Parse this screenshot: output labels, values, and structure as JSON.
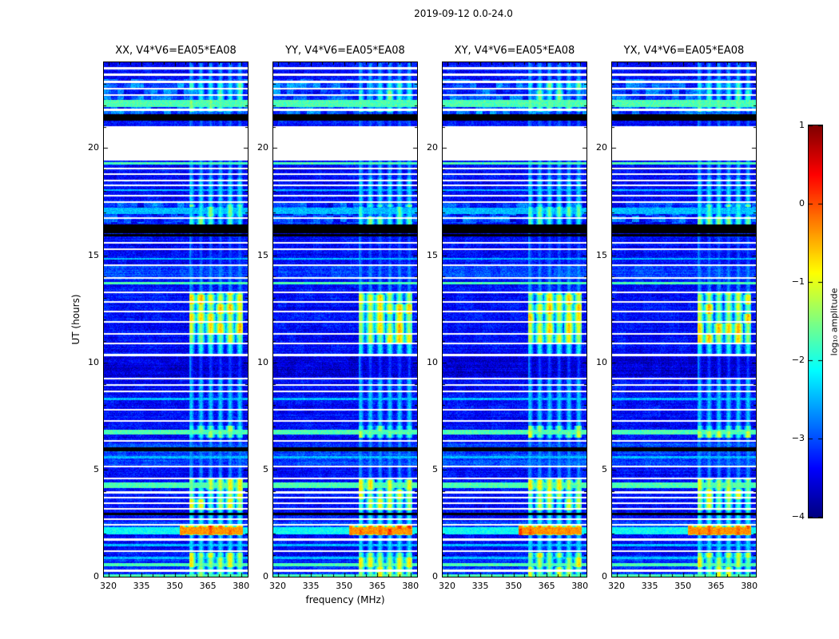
{
  "figure": {
    "title": "2019-09-12 0.0-24.0"
  },
  "chart_data": {
    "type": "heatmap",
    "suptitle": "2019-09-12 0.0-24.0",
    "xlabel": "frequency (MHz)",
    "ylabel": "UT (hours)",
    "x_range": [
      318,
      383
    ],
    "y_range": [
      0,
      24
    ],
    "x_ticks": [
      320,
      335,
      350,
      365,
      380
    ],
    "y_ticks": [
      0,
      5,
      10,
      15,
      20
    ],
    "panels": [
      {
        "key": "XX",
        "title": "XX, V4*V6=EA05*EA08"
      },
      {
        "key": "YY",
        "title": "YY, V4*V6=EA05*EA08"
      },
      {
        "key": "XY",
        "title": "XY, V4*V6=EA05*EA08"
      },
      {
        "key": "YX",
        "title": "YX, V4*V6=EA05*EA08"
      }
    ],
    "colorbar": {
      "label": "log₁₀ amplitude",
      "min": -4,
      "max": 1,
      "colormap": "jet",
      "ticks": [
        {
          "v": 1,
          "label": "1"
        },
        {
          "v": 0,
          "label": "0"
        },
        {
          "v": -1,
          "label": "−1"
        },
        {
          "v": -2,
          "label": "−2"
        },
        {
          "v": -3,
          "label": "−3"
        },
        {
          "v": -4,
          "label": "−4"
        }
      ]
    },
    "features": {
      "base_level": -3.35,
      "gap_hours": [
        19.42,
        21.02
      ],
      "rfi_band_mhz": [
        356.5,
        380.6
      ],
      "persistent_line_mhz": 356.9,
      "stripe_levels": {
        "cyan": -2.45,
        "bright": -1.75,
        "hot": -2.1
      },
      "stripes": [
        {
          "y": 23.75,
          "h": 0.1,
          "t": "white"
        },
        {
          "y": 23.45,
          "h": 0.1,
          "t": "white"
        },
        {
          "y": 23.1,
          "h": 0.12,
          "t": "white"
        },
        {
          "y": 22.8,
          "h": 0.08,
          "t": "white"
        },
        {
          "y": 22.5,
          "h": 0.08,
          "t": "white"
        },
        {
          "y": 22.1,
          "h": 0.3,
          "t": "bright"
        },
        {
          "y": 21.8,
          "h": 0.1,
          "t": "white"
        },
        {
          "y": 21.45,
          "h": 0.28,
          "t": "black"
        },
        {
          "y": 19.3,
          "h": 0.14,
          "t": "bright"
        },
        {
          "y": 19.05,
          "h": 0.08,
          "t": "white"
        },
        {
          "y": 18.8,
          "h": 0.1,
          "t": "white"
        },
        {
          "y": 18.5,
          "h": 0.1,
          "t": "white"
        },
        {
          "y": 18.28,
          "h": 0.06,
          "t": "white"
        },
        {
          "y": 18.05,
          "h": 0.1,
          "t": "cyan"
        },
        {
          "y": 17.8,
          "h": 0.08,
          "t": "white"
        },
        {
          "y": 17.5,
          "h": 0.08,
          "t": "white"
        },
        {
          "y": 17.1,
          "h": 0.3,
          "t": "cyan"
        },
        {
          "y": 16.75,
          "h": 0.08,
          "t": "white"
        },
        {
          "y": 16.25,
          "h": 0.38,
          "t": "black"
        },
        {
          "y": 15.95,
          "h": 0.1,
          "t": "black"
        },
        {
          "y": 15.6,
          "h": 0.1,
          "t": "white"
        },
        {
          "y": 15.3,
          "h": 0.08,
          "t": "white"
        },
        {
          "y": 14.85,
          "h": 0.1,
          "t": "cyan"
        },
        {
          "y": 14.55,
          "h": 0.08,
          "t": "white"
        },
        {
          "y": 13.95,
          "h": 0.08,
          "t": "white"
        },
        {
          "y": 13.7,
          "h": 0.12,
          "t": "bright"
        },
        {
          "y": 13.3,
          "h": 0.08,
          "t": "white"
        },
        {
          "y": 12.85,
          "h": 0.08,
          "t": "white"
        },
        {
          "y": 12.4,
          "h": 0.08,
          "t": "white"
        },
        {
          "y": 11.9,
          "h": 0.08,
          "t": "white"
        },
        {
          "y": 11.35,
          "h": 0.08,
          "t": "white"
        },
        {
          "y": 10.9,
          "h": 0.08,
          "t": "white"
        },
        {
          "y": 10.35,
          "h": 0.1,
          "t": "white"
        },
        {
          "y": 9.25,
          "h": 0.08,
          "t": "white"
        },
        {
          "y": 8.95,
          "h": 0.08,
          "t": "white"
        },
        {
          "y": 8.65,
          "h": 0.08,
          "t": "white"
        },
        {
          "y": 8.3,
          "h": 0.1,
          "t": "cyan"
        },
        {
          "y": 7.8,
          "h": 0.08,
          "t": "white"
        },
        {
          "y": 7.3,
          "h": 0.08,
          "t": "white"
        },
        {
          "y": 6.78,
          "h": 0.22,
          "t": "bright"
        },
        {
          "y": 6.35,
          "h": 0.08,
          "t": "white"
        },
        {
          "y": 5.95,
          "h": 0.18,
          "t": "black"
        },
        {
          "y": 5.6,
          "h": 0.1,
          "t": "cyan"
        },
        {
          "y": 5.15,
          "h": 0.08,
          "t": "white"
        },
        {
          "y": 4.6,
          "h": 0.08,
          "t": "white"
        },
        {
          "y": 4.28,
          "h": 0.26,
          "t": "bright"
        },
        {
          "y": 3.95,
          "h": 0.08,
          "t": "white"
        },
        {
          "y": 3.7,
          "h": 0.08,
          "t": "white"
        },
        {
          "y": 3.45,
          "h": 0.08,
          "t": "white"
        },
        {
          "y": 3.2,
          "h": 0.08,
          "t": "white"
        },
        {
          "y": 2.95,
          "h": 0.12,
          "t": "black"
        },
        {
          "y": 2.7,
          "h": 0.08,
          "t": "white"
        },
        {
          "y": 2.45,
          "h": 0.08,
          "t": "white"
        },
        {
          "y": 2.15,
          "h": 0.34,
          "t": "hot"
        },
        {
          "y": 1.75,
          "h": 0.08,
          "t": "white"
        },
        {
          "y": 1.5,
          "h": 0.1,
          "t": "cyan"
        },
        {
          "y": 1.2,
          "h": 0.08,
          "t": "white"
        },
        {
          "y": 0.9,
          "h": 0.1,
          "t": "cyan"
        },
        {
          "y": 0.58,
          "h": 0.14,
          "t": "bright"
        },
        {
          "y": 0.3,
          "h": 0.08,
          "t": "white"
        },
        {
          "y": 0.08,
          "h": 0.1,
          "t": "bright"
        }
      ],
      "rfi_epochs": [
        {
          "y0": 0.0,
          "y1": 1.15,
          "level": -1.3,
          "blocky": true
        },
        {
          "y0": 1.15,
          "y1": 1.95,
          "level": -2.3,
          "blocky": false
        },
        {
          "y0": 1.95,
          "y1": 2.45,
          "level": -0.35,
          "blocky": true,
          "x0": 352.0
        },
        {
          "y0": 2.45,
          "y1": 3.1,
          "level": -2.1,
          "blocky": false
        },
        {
          "y0": 3.1,
          "y1": 4.6,
          "level": -1.35,
          "blocky": true
        },
        {
          "y0": 4.6,
          "y1": 6.5,
          "level": -2.7,
          "blocky": false
        },
        {
          "y0": 6.5,
          "y1": 7.05,
          "level": -1.6,
          "blocky": true
        },
        {
          "y0": 7.05,
          "y1": 9.3,
          "level": -2.4,
          "blocky": false
        },
        {
          "y0": 9.3,
          "y1": 10.3,
          "level": -3.1,
          "blocky": false
        },
        {
          "y0": 10.3,
          "y1": 10.85,
          "level": -2.1,
          "blocky": false
        },
        {
          "y0": 10.85,
          "y1": 13.3,
          "level": -1.05,
          "blocky": true
        },
        {
          "y0": 13.3,
          "y1": 14.6,
          "level": -2.7,
          "blocky": false
        },
        {
          "y0": 14.6,
          "y1": 16.4,
          "level": -3.0,
          "blocky": false
        },
        {
          "y0": 16.4,
          "y1": 17.4,
          "level": -1.9,
          "blocky": true
        },
        {
          "y0": 17.4,
          "y1": 18.6,
          "level": -2.3,
          "blocky": false
        },
        {
          "y0": 18.6,
          "y1": 19.45,
          "level": -2.6,
          "blocky": false
        },
        {
          "y0": 21.0,
          "y1": 21.7,
          "level": -2.9,
          "blocky": false
        },
        {
          "y0": 21.7,
          "y1": 23.1,
          "level": -2.0,
          "blocky": true
        },
        {
          "y0": 23.1,
          "y1": 24.0,
          "level": -2.6,
          "blocky": false
        }
      ],
      "bg_bands": [
        {
          "y0": 21.55,
          "y1": 23.25,
          "d": 0.35,
          "mottle": true
        },
        {
          "y0": 16.5,
          "y1": 17.45,
          "d": 0.2,
          "mottle": true
        },
        {
          "y0": 13.9,
          "y1": 14.5,
          "d": 0.3
        },
        {
          "y0": 5.2,
          "y1": 6.25,
          "d": 0.3
        },
        {
          "y0": 2.0,
          "y1": 2.6,
          "d": 0.3
        },
        {
          "y0": 0.0,
          "y1": 1.0,
          "d": 0.2
        },
        {
          "y0": 9.35,
          "y1": 10.25,
          "d": -0.25
        }
      ]
    }
  }
}
